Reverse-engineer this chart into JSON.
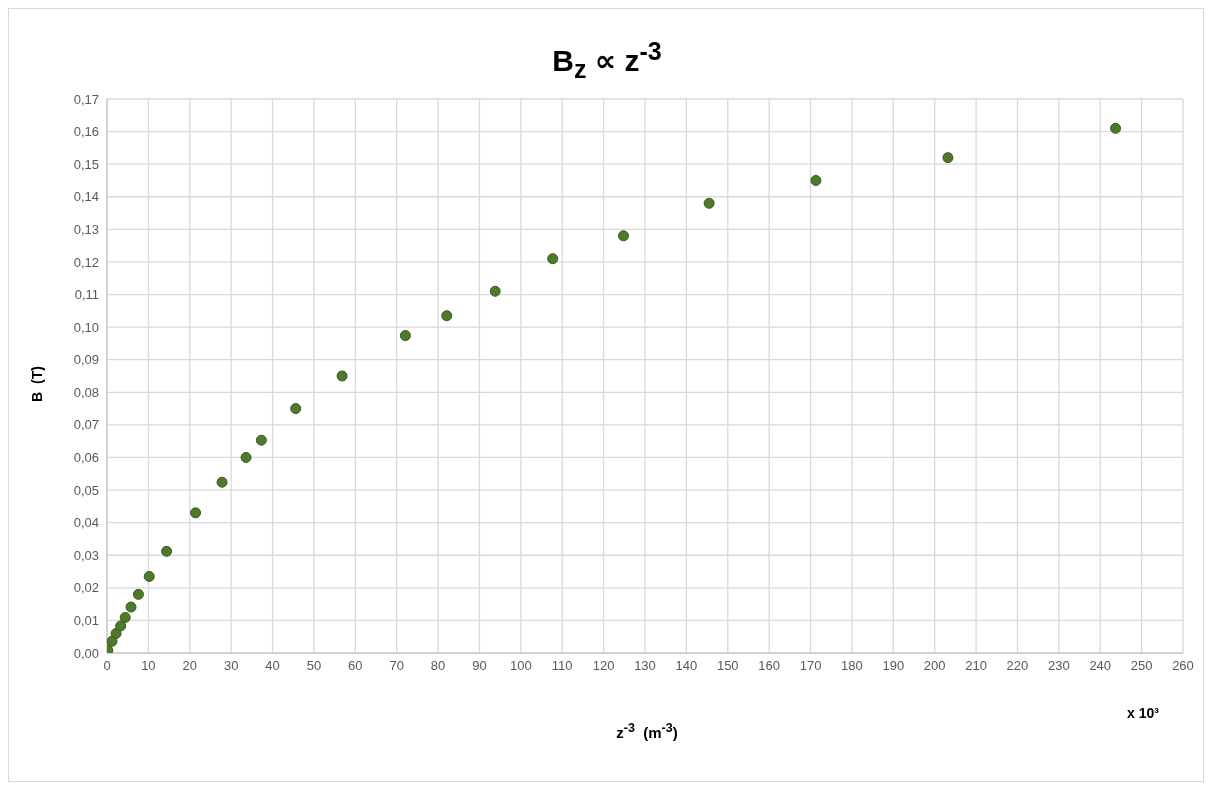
{
  "chart_data": {
    "type": "scatter",
    "title": "B$_{z}$  ∝  z$^{-3}$",
    "xlabel": "z$^{-3}$  (m$^{-3}$)",
    "ylabel": "B  (T)",
    "annotations": [
      "x 10³"
    ],
    "series": [
      {
        "color": "#4e7a2a",
        "x": [
          0.2,
          1.2,
          2.2,
          3.3,
          4.4,
          5.8,
          7.6,
          10.2,
          14.4,
          21.4,
          27.8,
          33.6,
          37.3,
          45.6,
          56.8,
          72.1,
          82.1,
          93.8,
          107.7,
          124.8,
          145.5,
          171.3,
          203.2,
          243.7
        ],
        "values": [
          0.0008,
          0.0036,
          0.006,
          0.0083,
          0.0109,
          0.0141,
          0.018,
          0.0235,
          0.0312,
          0.043,
          0.0524,
          0.06,
          0.0653,
          0.075,
          0.085,
          0.0974,
          0.1035,
          0.111,
          0.121,
          0.128,
          0.138,
          0.145,
          0.152,
          0.161
        ]
      }
    ],
    "xlim": [
      0,
      260
    ],
    "xticks": [
      0,
      10,
      20,
      30,
      40,
      50,
      60,
      70,
      80,
      90,
      100,
      110,
      120,
      130,
      140,
      150,
      160,
      170,
      180,
      190,
      200,
      210,
      220,
      230,
      240,
      250,
      260
    ],
    "ylim": [
      0,
      0.17
    ],
    "yticks": [
      {
        "value": 0,
        "label": "0,00"
      },
      {
        "value": 0.01,
        "label": "0,01"
      },
      {
        "value": 0.02,
        "label": "0,02"
      },
      {
        "value": 0.03,
        "label": "0,03"
      },
      {
        "value": 0.04,
        "label": "0,04"
      },
      {
        "value": 0.05,
        "label": "0,05"
      },
      {
        "value": 0.06,
        "label": "0,06"
      },
      {
        "value": 0.07,
        "label": "0,07"
      },
      {
        "value": 0.08,
        "label": "0,08"
      },
      {
        "value": 0.09,
        "label": "0,09"
      },
      {
        "value": 0.1,
        "label": "0,10"
      },
      {
        "value": 0.11,
        "label": "0,11"
      },
      {
        "value": 0.12,
        "label": "0,12"
      },
      {
        "value": 0.13,
        "label": "0,13"
      },
      {
        "value": 0.14,
        "label": "0,14"
      },
      {
        "value": 0.15,
        "label": "0,15"
      },
      {
        "value": 0.16,
        "label": "0,16"
      },
      {
        "value": 0.17,
        "label": "0,17"
      }
    ],
    "grid": true,
    "marker": "circle"
  }
}
